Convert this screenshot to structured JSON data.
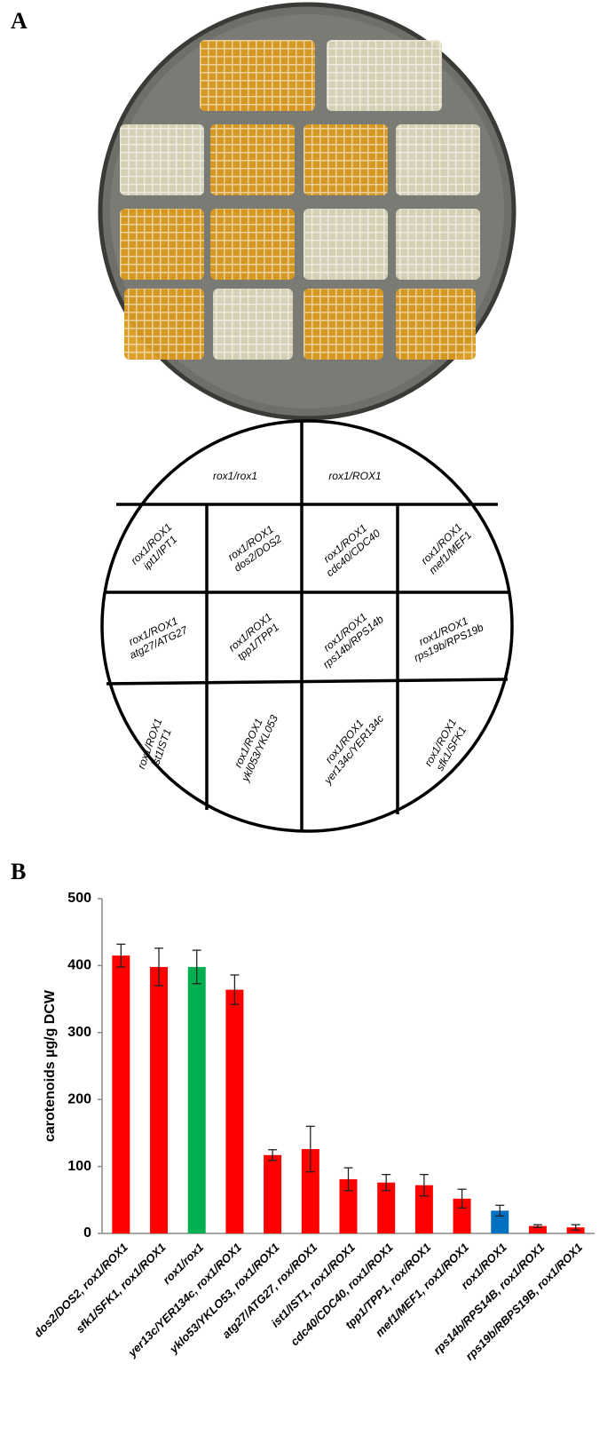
{
  "panel_a": {
    "label": "A",
    "diagram": {
      "top": [
        "rox1/rox1",
        "rox1/ROX1"
      ],
      "cells": [
        [
          [
            "rox1/ROX1",
            "ipt1/IPT1"
          ],
          [
            "rox1/ROX1",
            "dos2/DOS2"
          ],
          [
            "rox1/ROX1",
            "cdc40/CDC40"
          ],
          [
            "rox1/ROX1",
            "mef1/MEF1"
          ]
        ],
        [
          [
            "rox1/ROX1",
            "atg27/ATG27"
          ],
          [
            "rox1/ROX1",
            "tpp1/TPP1"
          ],
          [
            "rox1/ROX1",
            "rps14b/RPS14b"
          ],
          [
            "rox1/ROX1",
            "rps19b/RPS19b"
          ]
        ],
        [
          [
            "rox1/ROX1",
            "ist1IST1"
          ],
          [
            "rox1/ROX1",
            "ykl053/YKL053"
          ],
          [
            "rox1/ROX1",
            "yer134c/YER134c"
          ],
          [
            "rox1/ROX1",
            "sfk1/SFK1"
          ]
        ]
      ]
    }
  },
  "panel_b": {
    "label": "B"
  },
  "chart_data": {
    "type": "bar",
    "y_label": "carotenoids µg/g DCW",
    "categories": [
      "dos2/DOS2, rox1/ROX1",
      "sfk1/SFK1, rox1/ROX1",
      "rox1/rox1",
      "yer13c/YER134c, rox1/ROX1",
      "yklo53/YKLO53, rox1/ROX1",
      "atg27/ATG27, rox/ROX1",
      "ist1/IST1, rox1/ROX1",
      "cdc40/CDC40, rox1/ROX1",
      "tpp1/TPP1, rox/ROX1",
      "mef1/MEF1, rox1/ROX1",
      "rox1/ROX1",
      "rps14b/RPS14B, rox1/ROX1",
      "rps19b/RBPS19B, rox1/ROX1"
    ],
    "values": [
      415,
      398,
      398,
      364,
      117,
      126,
      81,
      76,
      72,
      52,
      34,
      11,
      9
    ],
    "errors": [
      17,
      28,
      25,
      22,
      8,
      34,
      17,
      12,
      16,
      14,
      8,
      2,
      4
    ],
    "colors": [
      "#ff0000",
      "#ff0000",
      "#00b050",
      "#ff0000",
      "#ff0000",
      "#ff0000",
      "#ff0000",
      "#ff0000",
      "#ff0000",
      "#ff0000",
      "#0070c0",
      "#ff0000",
      "#ff0000"
    ],
    "ylim": [
      0,
      500
    ],
    "yticks": [
      0,
      100,
      200,
      300,
      400,
      500
    ],
    "grid": false
  }
}
